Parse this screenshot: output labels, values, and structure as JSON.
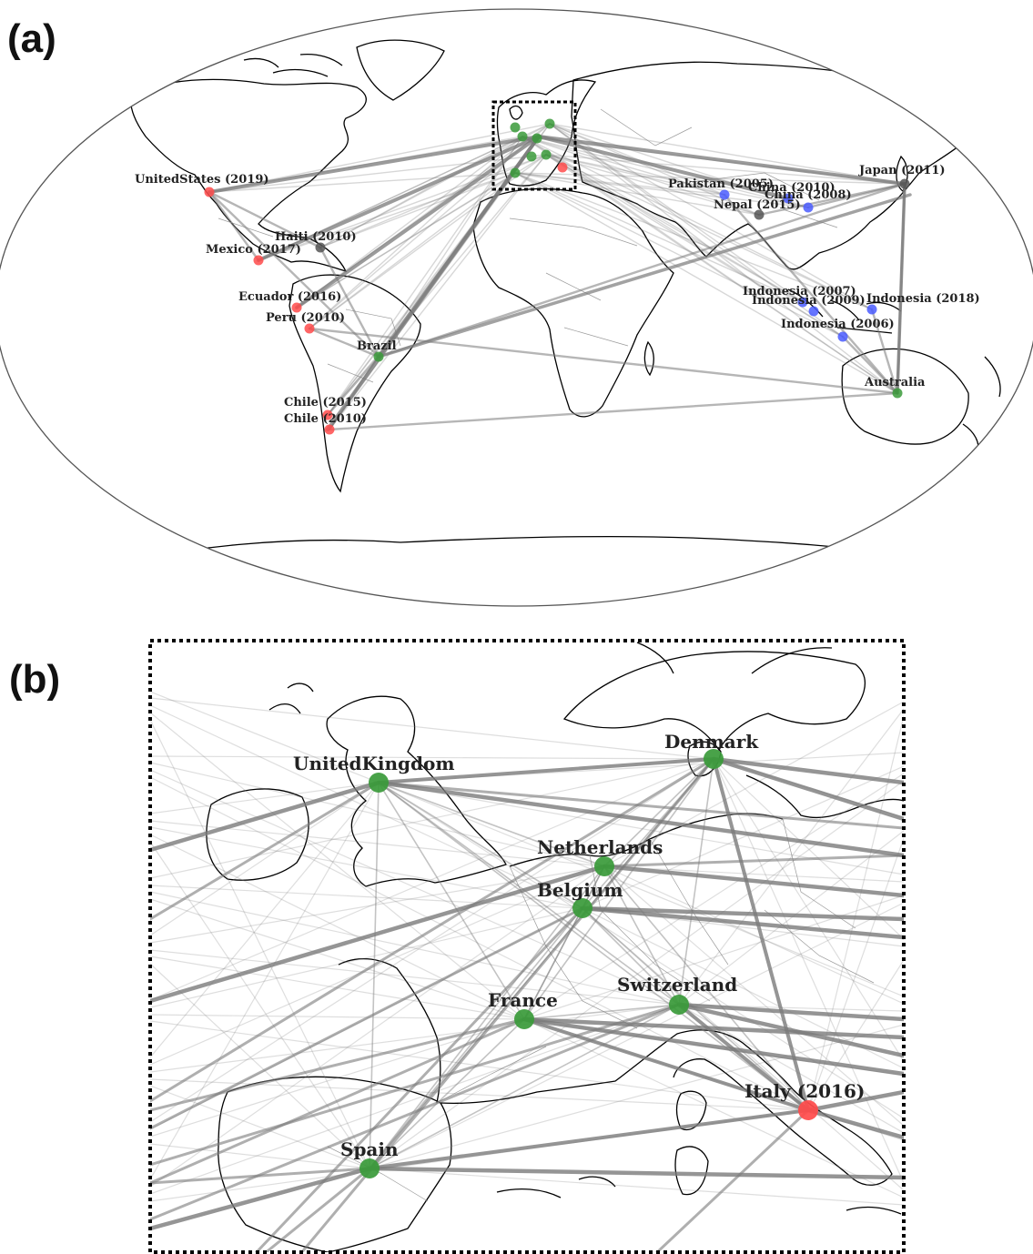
{
  "panels": {
    "a": {
      "letter": "(a)"
    },
    "b": {
      "letter": "(b)"
    }
  },
  "colors": {
    "affected": "#ff4b4b",
    "responder": "#3a9a3a",
    "asia": "#4a5cff",
    "neutral": "#555555",
    "link": "#7a7a7a"
  },
  "world_nodes": [
    {
      "id": "us",
      "label": "UnitedStates (2019)",
      "type": "affected"
    },
    {
      "id": "haiti",
      "label": "Haiti (2010)",
      "type": "neutral"
    },
    {
      "id": "mexico",
      "label": "Mexico (2017)",
      "type": "affected"
    },
    {
      "id": "ecuador",
      "label": "Ecuador (2016)",
      "type": "affected"
    },
    {
      "id": "peru",
      "label": "Peru (2010)",
      "type": "affected"
    },
    {
      "id": "brazil",
      "label": "Brazil",
      "type": "responder"
    },
    {
      "id": "chile15",
      "label": "Chile (2015)",
      "type": "affected"
    },
    {
      "id": "chile10",
      "label": "Chile (2010)",
      "type": "affected"
    },
    {
      "id": "pakistan",
      "label": "Pakistan (2005)",
      "type": "asia"
    },
    {
      "id": "china10",
      "label": "China (2010)",
      "type": "asia"
    },
    {
      "id": "china08",
      "label": "China (2008)",
      "type": "asia"
    },
    {
      "id": "nepal",
      "label": "Nepal (2015)",
      "type": "neutral"
    },
    {
      "id": "japan",
      "label": "Japan (2011)",
      "type": "neutral"
    },
    {
      "id": "indo07",
      "label": "Indonesia (2007)",
      "type": "asia"
    },
    {
      "id": "indo09",
      "label": "Indonesia (2009)",
      "type": "asia"
    },
    {
      "id": "indo18",
      "label": "Indonesia (2018)",
      "type": "asia"
    },
    {
      "id": "indo06",
      "label": "Indonesia (2006)",
      "type": "asia"
    },
    {
      "id": "australia",
      "label": "Australia",
      "type": "responder"
    }
  ],
  "europe_nodes": [
    {
      "id": "uk",
      "label": "UnitedKingdom",
      "type": "responder"
    },
    {
      "id": "denmark",
      "label": "Denmark",
      "type": "responder"
    },
    {
      "id": "netherlands",
      "label": "Netherlands",
      "type": "responder"
    },
    {
      "id": "belgium",
      "label": "Belgium",
      "type": "responder"
    },
    {
      "id": "switzerland",
      "label": "Switzerland",
      "type": "responder"
    },
    {
      "id": "france",
      "label": "France",
      "type": "responder"
    },
    {
      "id": "italy",
      "label": "Italy (2016)",
      "type": "affected"
    },
    {
      "id": "spain",
      "label": "Spain",
      "type": "responder"
    }
  ]
}
